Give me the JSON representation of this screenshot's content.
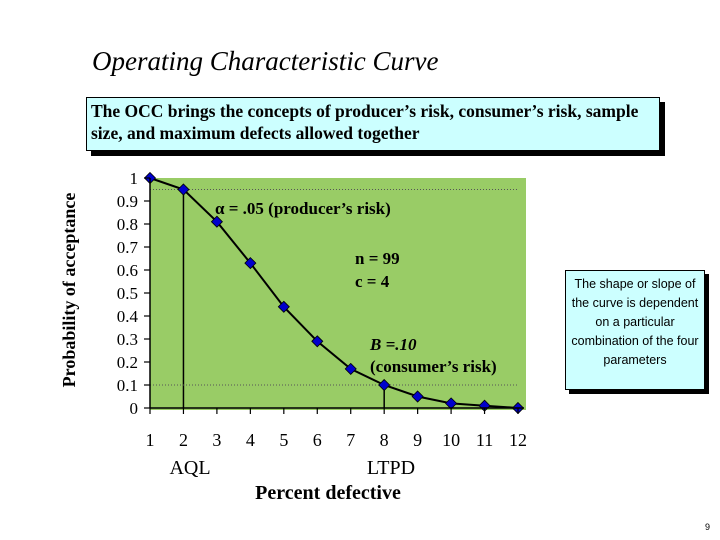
{
  "slide": {
    "title": "Operating Characteristic Curve",
    "callout": "The OCC brings the concepts of producer’s risk, consumer’s risk, sample size, and maximum defects allowed together",
    "side_note": "The shape or slope of the curve is dependent on a particular combination of the four parameters",
    "page_number": "9"
  },
  "colors": {
    "plot_background": "#99cc66",
    "curve": "#000000",
    "marker_fill": "#0000cc",
    "callout_background": "#ccffff"
  },
  "chart_data": {
    "type": "line",
    "title": "",
    "xlabel": "Percent defective",
    "ylabel": "Probability of acceptance",
    "x": [
      1,
      2,
      3,
      4,
      5,
      6,
      7,
      8,
      9,
      10,
      11,
      12
    ],
    "x_tick_labels": [
      "1",
      "2",
      "3",
      "4",
      "5",
      "6",
      "7",
      "8",
      "9",
      "10",
      "11",
      "12"
    ],
    "y_tick_labels": [
      "1",
      "0.9",
      "0.8",
      "0.7",
      "0.6",
      "0.5",
      "0.4",
      "0.3",
      "0.2",
      "0.1",
      "0"
    ],
    "xlim": [
      1,
      12
    ],
    "ylim": [
      0,
      1
    ],
    "grid": false,
    "series": [
      {
        "values": [
          1.0,
          0.95,
          0.81,
          0.63,
          0.44,
          0.29,
          0.17,
          0.1,
          0.05,
          0.02,
          0.01,
          0.0
        ]
      }
    ],
    "reference_points": [
      {
        "name": "AQL",
        "x": 2,
        "y": 0.95
      },
      {
        "name": "LTPD",
        "x": 8,
        "y": 0.1
      }
    ],
    "annotations": {
      "aql_label": "AQL",
      "ltpd_label": "LTPD",
      "alpha": "α = .05 (producer’s risk)",
      "n": "n = 99",
      "c": "c = 4",
      "beta": "B =.10",
      "beta_desc": "(consumer’s risk)"
    }
  }
}
